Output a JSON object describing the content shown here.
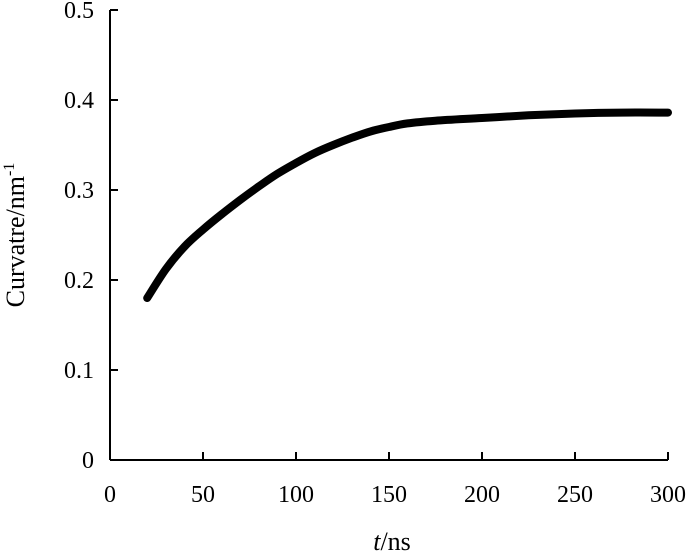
{
  "chart_data": {
    "type": "line",
    "title": "",
    "xlabel": {
      "italic": "t",
      "rest": "/ns"
    },
    "ylabel": {
      "base": "Curvatre/nm",
      "sup": "-1"
    },
    "xlim": [
      0,
      300
    ],
    "ylim": [
      0,
      0.5
    ],
    "xticks": [
      0,
      50,
      100,
      150,
      200,
      250,
      300
    ],
    "yticks": [
      0,
      0.1,
      0.2,
      0.3,
      0.4,
      0.5
    ],
    "xtick_labels": [
      "0",
      "50",
      "100",
      "150",
      "200",
      "250",
      "300"
    ],
    "ytick_labels": [
      "0",
      "0.1",
      "0.2",
      "0.3",
      "0.4",
      "0.5"
    ],
    "grid": false,
    "legend": "none",
    "line_color": "#000000",
    "series": [
      {
        "x": [
          20,
          30,
          40,
          50,
          60,
          70,
          80,
          90,
          100,
          110,
          120,
          130,
          140,
          150,
          160,
          175,
          200,
          225,
          250,
          275,
          300
        ],
        "y": [
          0.18,
          0.212,
          0.237,
          0.256,
          0.273,
          0.289,
          0.304,
          0.318,
          0.33,
          0.341,
          0.35,
          0.358,
          0.365,
          0.37,
          0.374,
          0.377,
          0.38,
          0.383,
          0.385,
          0.386,
          0.386
        ]
      }
    ]
  }
}
